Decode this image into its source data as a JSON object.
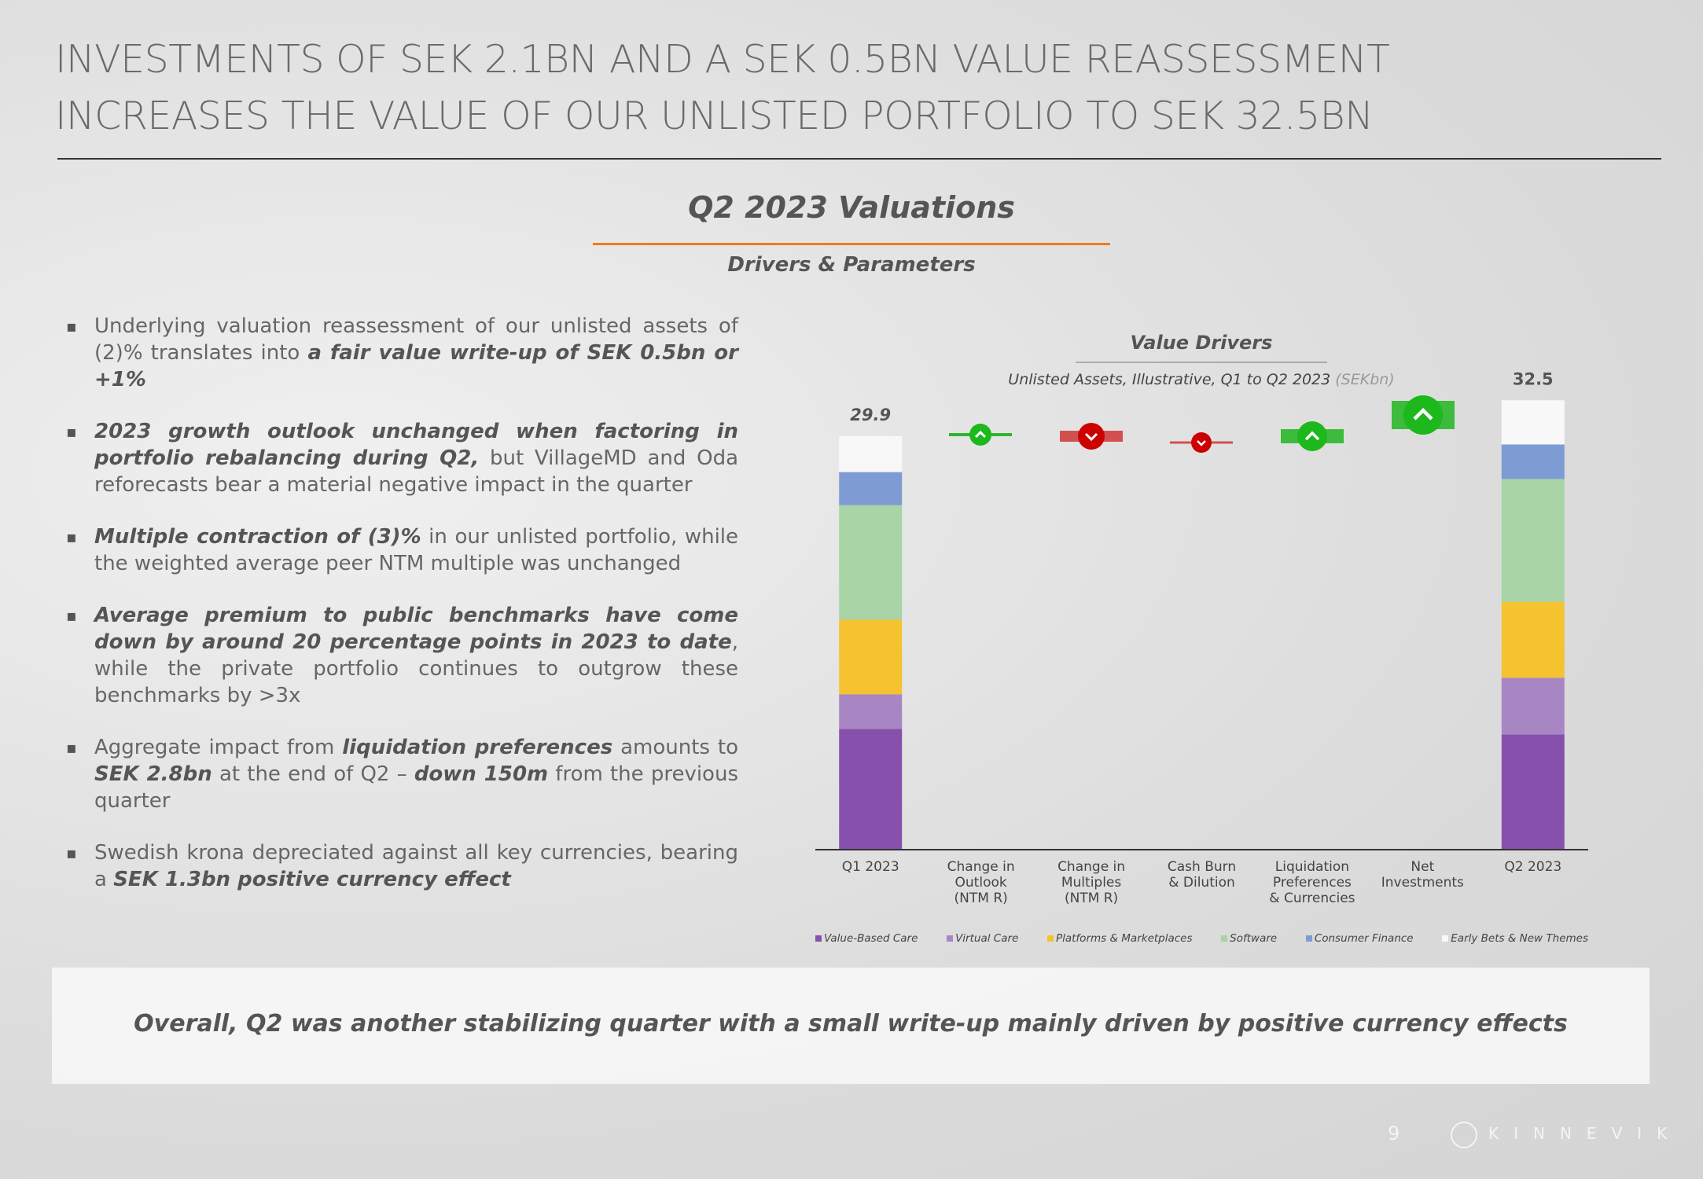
{
  "header": {
    "title_lines": [
      "INVESTMENTS OF SEK 2.1BN AND A SEK 0.5BN VALUE REASSESSMENT",
      "INCREASES THE VALUE OF OUR UNLISTED PORTFOLIO TO SEK 32.5BN"
    ]
  },
  "section": {
    "title": "Q2 2023 Valuations",
    "subtitle": "Drivers & Parameters"
  },
  "bullets": [
    {
      "runs": [
        {
          "text": "Underlying valuation reassessment of our unlisted assets of (2)% translates into ",
          "bold": false
        },
        {
          "text": "a fair value write-up of SEK 0.5bn or +1%",
          "bold": true
        }
      ]
    },
    {
      "runs": [
        {
          "text": "2023 growth outlook unchanged when factoring in portfolio rebalancing during Q2,",
          "bold": true
        },
        {
          "text": " but VillageMD and Oda reforecasts bear a material negative impact in the quarter",
          "bold": false
        }
      ]
    },
    {
      "runs": [
        {
          "text": "Multiple contraction of (3)%",
          "bold": true
        },
        {
          "text": " in our unlisted portfolio, while the weighted average peer NTM multiple was unchanged",
          "bold": false
        }
      ]
    },
    {
      "runs": [
        {
          "text": "Average premium to public benchmarks have come down by around 20 percentage points in 2023 to date",
          "bold": true
        },
        {
          "text": ", while the private portfolio continues to outgrow these benchmarks by >3x",
          "bold": false
        }
      ]
    },
    {
      "runs": [
        {
          "text": "Aggregate impact from ",
          "bold": false
        },
        {
          "text": "liquidation preferences",
          "bold": true
        },
        {
          "text": " amounts to ",
          "bold": false
        },
        {
          "text": "SEK 2.8bn",
          "bold": true
        },
        {
          "text": " at the end of Q2 – ",
          "bold": false
        },
        {
          "text": "down 150m",
          "bold": true
        },
        {
          "text": " from the previous quarter",
          "bold": false
        }
      ]
    },
    {
      "runs": [
        {
          "text": "Swedish krona depreciated against all key currencies, bearing a ",
          "bold": false
        },
        {
          "text": "SEK 1.3bn positive currency effect",
          "bold": true
        }
      ]
    }
  ],
  "chart_data": {
    "type": "bar",
    "stacked": true,
    "title": "Value Drivers",
    "subtitle": "Unlisted Assets, Illustrative, Q1 to Q2 2023",
    "unit": "(SEKbn)",
    "categories": [
      "Q1 2023",
      "Change in\nOutlook\n(NTM R)",
      "Change in\nMultiples\n(NTM R)",
      "Cash Burn\n& Dilution",
      "Liquidation\nPreferences\n& Currencies",
      "Net\nInvestments",
      "Q2 2023"
    ],
    "series": [
      {
        "name": "Value-Based Care",
        "color": "#8750ad",
        "values": [
          8.7,
          null,
          null,
          null,
          null,
          null,
          8.3
        ]
      },
      {
        "name": "Virtual Care",
        "color": "#a886c4",
        "values": [
          2.5,
          null,
          null,
          null,
          null,
          null,
          4.1
        ]
      },
      {
        "name": "Platforms & Marketplaces",
        "color": "#f5c230",
        "values": [
          5.4,
          null,
          null,
          null,
          null,
          null,
          5.5
        ]
      },
      {
        "name": "Software",
        "color": "#a8d4a6",
        "values": [
          8.3,
          null,
          null,
          null,
          null,
          null,
          8.9
        ]
      },
      {
        "name": "Consumer Finance",
        "color": "#7e9cd3",
        "values": [
          2.4,
          null,
          null,
          null,
          null,
          null,
          2.5
        ]
      },
      {
        "name": "Early Bets & New Themes",
        "color": "#f8f8f8",
        "values": [
          2.6,
          null,
          null,
          null,
          null,
          null,
          3.2
        ]
      }
    ],
    "totals": [
      29.9,
      null,
      null,
      null,
      null,
      null,
      32.5
    ]
  },
  "conclusion": "Overall, Q2 was another stabilizing quarter with a small write-up mainly driven by positive currency effects",
  "footer": {
    "page_number": "9",
    "brand": "KINNEVIK"
  }
}
